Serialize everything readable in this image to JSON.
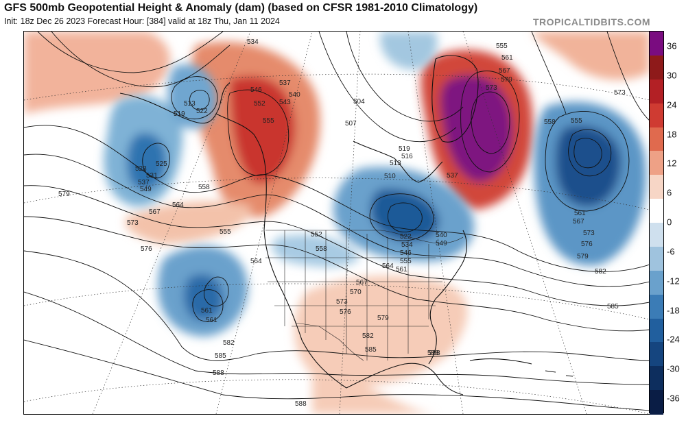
{
  "header": {
    "title": "GFS 500mb Geopotential Height & Anomaly (dam) (based on CFSR 1981-2010 Climatology)",
    "subtitle": "Init: 18z Dec 26 2023   Forecast Hour: [384]   valid at 18z Thu, Jan 11 2024",
    "brand": "TROPICALTIDBITS.COM"
  },
  "colorbar": {
    "ticks": [
      "36",
      "30",
      "24",
      "18",
      "12",
      "6",
      "0",
      "-6",
      "-12",
      "-18",
      "-24",
      "-30",
      "-36"
    ],
    "colors": [
      "#7a0c80",
      "#8e1a1a",
      "#b32025",
      "#cf3b32",
      "#e06a4e",
      "#eea186",
      "#f7d6c6",
      "#ffffff",
      "#cfe0ee",
      "#9fc3de",
      "#6aa1cc",
      "#3b7cb6",
      "#215f9e",
      "#15457f",
      "#0d2e5e",
      "#0a1d45"
    ]
  },
  "contour_labels": [
    "534",
    "537",
    "540",
    "543",
    "546",
    "552",
    "555",
    "513",
    "519",
    "522",
    "525",
    "528",
    "531",
    "537",
    "549",
    "558",
    "564",
    "567",
    "573",
    "576",
    "579",
    "555",
    "561",
    "564",
    "552",
    "558",
    "561",
    "567",
    "504",
    "507",
    "510",
    "513",
    "516",
    "519",
    "537",
    "549",
    "522",
    "534",
    "540",
    "546",
    "555",
    "561",
    "564",
    "567",
    "570",
    "573",
    "576",
    "579",
    "582",
    "585",
    "588",
    "555",
    "561",
    "567",
    "570",
    "573",
    "558",
    "555",
    "561",
    "567",
    "573",
    "576",
    "579",
    "582",
    "585",
    "588",
    "561",
    "567",
    "573",
    "579",
    "582",
    "585",
    "588",
    "588"
  ]
}
